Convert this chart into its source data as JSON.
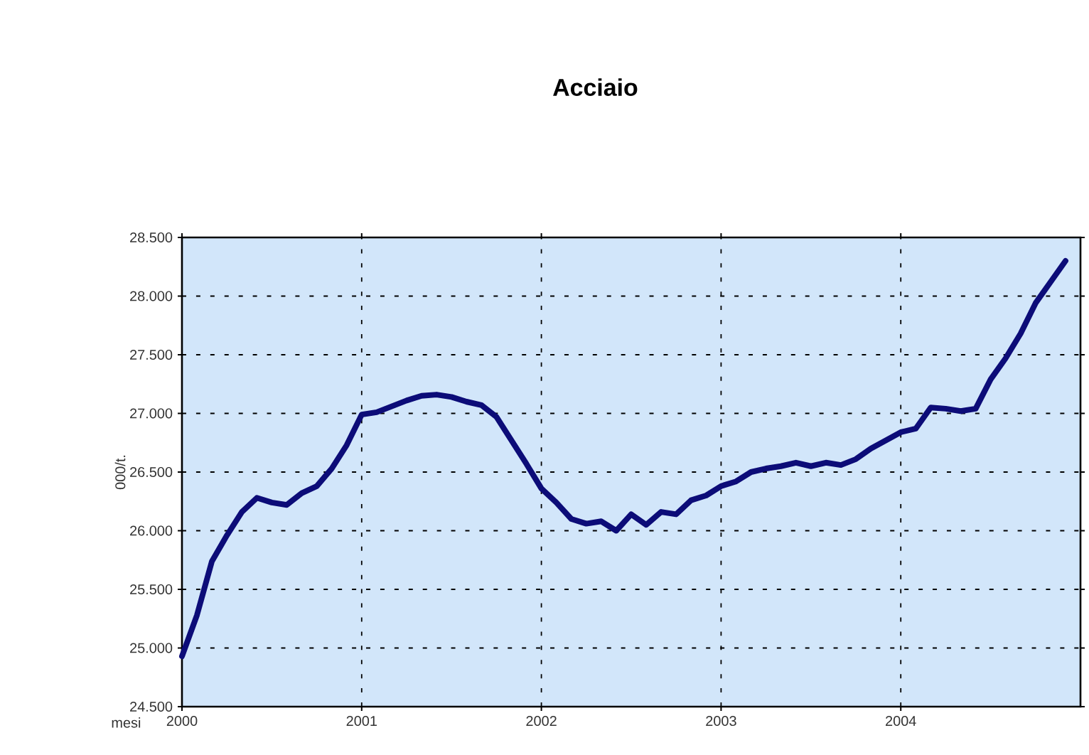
{
  "chart_data": {
    "type": "line",
    "title": "Acciaio",
    "xlabel": "mesi",
    "ylabel": "000/t.",
    "x": [
      2000.0,
      2000.0833,
      2000.1667,
      2000.25,
      2000.3333,
      2000.4167,
      2000.5,
      2000.5833,
      2000.6667,
      2000.75,
      2000.8333,
      2000.9167,
      2001.0,
      2001.0833,
      2001.1667,
      2001.25,
      2001.3333,
      2001.4167,
      2001.5,
      2001.5833,
      2001.6667,
      2001.75,
      2001.8333,
      2001.9167,
      2002.0,
      2002.0833,
      2002.1667,
      2002.25,
      2002.3333,
      2002.4167,
      2002.5,
      2002.5833,
      2002.6667,
      2002.75,
      2002.8333,
      2002.9167,
      2003.0,
      2003.0833,
      2003.1667,
      2003.25,
      2003.3333,
      2003.4167,
      2003.5,
      2003.5833,
      2003.6667,
      2003.75,
      2003.8333,
      2003.9167,
      2004.0,
      2004.0833,
      2004.1667,
      2004.25,
      2004.3333,
      2004.4167,
      2004.5,
      2004.5833,
      2004.6667,
      2004.75,
      2004.8333,
      2004.9167
    ],
    "series": [
      {
        "color": "#0c0c78",
        "values": [
          24930,
          25280,
          25740,
          25960,
          26160,
          26280,
          26240,
          26220,
          26320,
          26380,
          26530,
          26730,
          26990,
          27010,
          27060,
          27110,
          27150,
          27160,
          27140,
          27100,
          27070,
          26970,
          26770,
          26570,
          26360,
          26240,
          26100,
          26060,
          26080,
          26000,
          26140,
          26050,
          26160,
          26140,
          26260,
          26300,
          26380,
          26420,
          26500,
          26530,
          26550,
          26580,
          26550,
          26580,
          26560,
          26610,
          26700,
          26770,
          26840,
          26870,
          27050,
          27040,
          27020,
          27040,
          27290,
          27470,
          27680,
          27940,
          28120,
          28300
        ]
      }
    ],
    "xlim": [
      2000,
      2005
    ],
    "xticks": [
      2000,
      2001,
      2002,
      2003,
      2004
    ],
    "ylim": [
      24500,
      28500
    ],
    "yticks": [
      {
        "value": 24500,
        "label": "24.500"
      },
      {
        "value": 25000,
        "label": "25.000"
      },
      {
        "value": 25500,
        "label": "25.500"
      },
      {
        "value": 26000,
        "label": "26.000"
      },
      {
        "value": 26500,
        "label": "26.500"
      },
      {
        "value": 27000,
        "label": "27.000"
      },
      {
        "value": 27500,
        "label": "27.500"
      },
      {
        "value": 28000,
        "label": "28.000"
      },
      {
        "value": 28500,
        "label": "28.500"
      }
    ],
    "grid": true,
    "marker": "none",
    "line_style": "solid"
  }
}
